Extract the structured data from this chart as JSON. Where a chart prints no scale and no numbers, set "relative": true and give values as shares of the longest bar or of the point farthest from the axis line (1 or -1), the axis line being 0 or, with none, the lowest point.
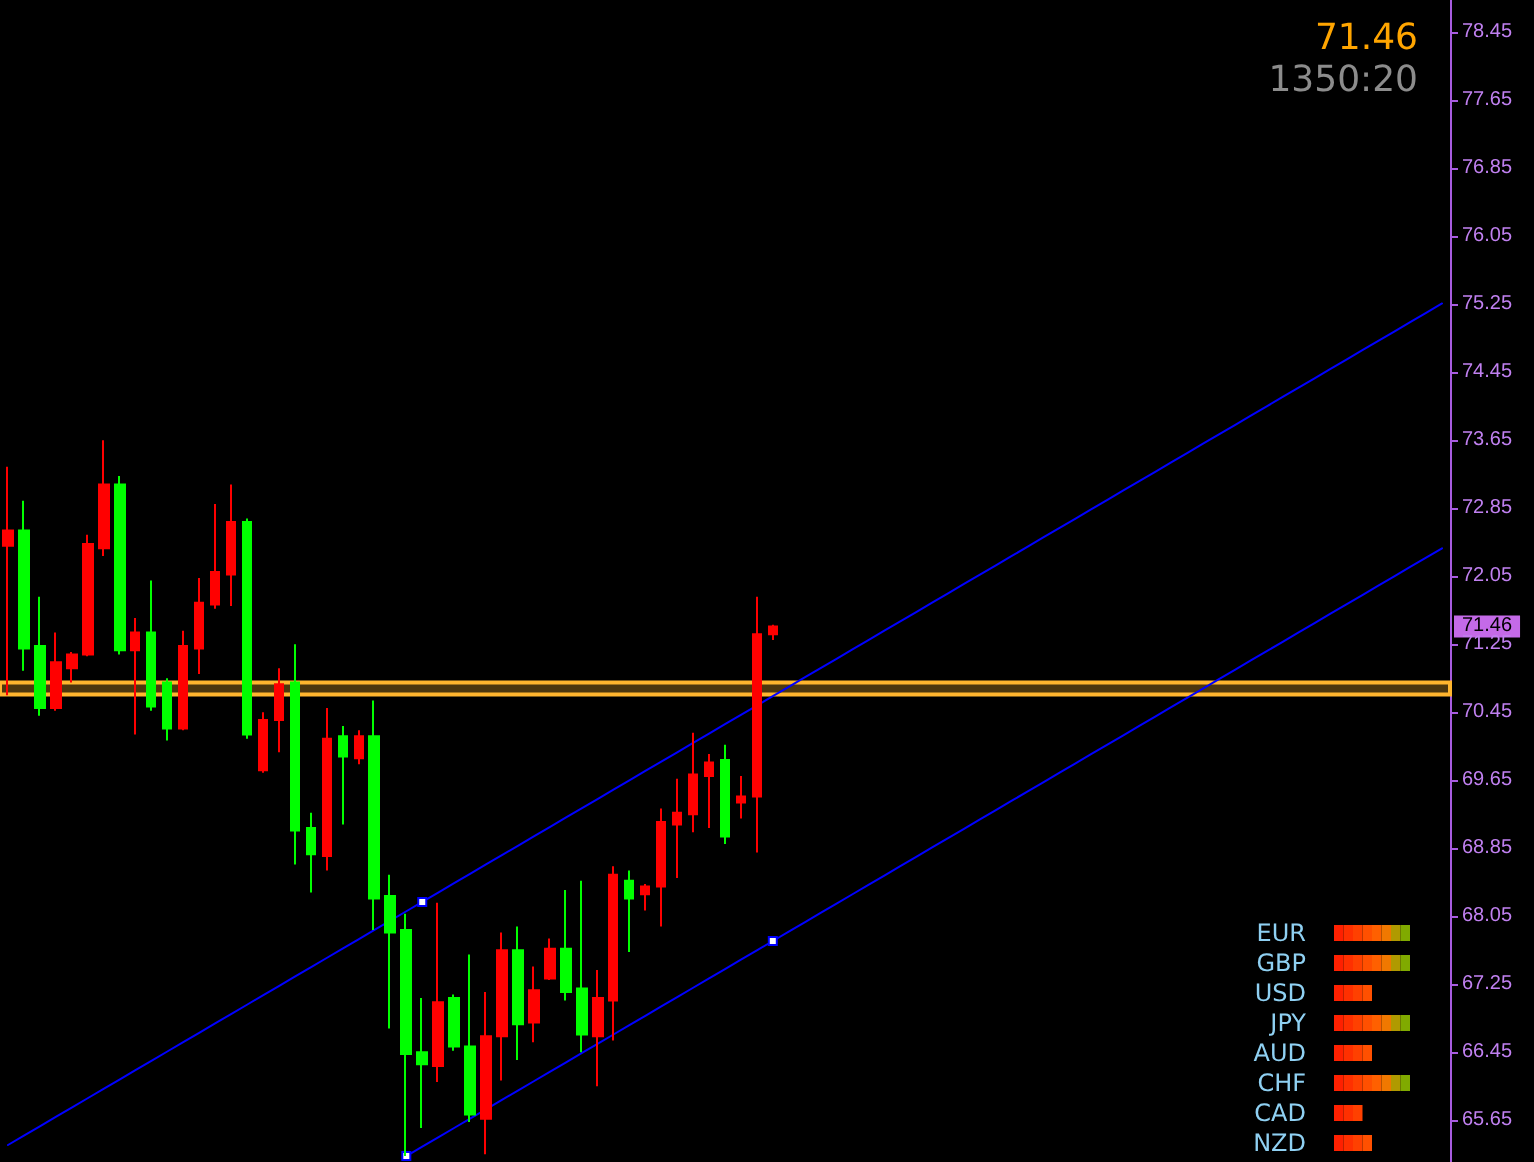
{
  "chart_data": [
    {
      "type": "candlestick",
      "annotations": [
        "71.46",
        "1350:20",
        {
          "text": "71.46",
          "y": 71.46
        }
      ],
      "categories": [
        null,
        null,
        null,
        null,
        null,
        null,
        null,
        null,
        null,
        null,
        null,
        null,
        null,
        null,
        null,
        null,
        null,
        null,
        null,
        null,
        null,
        null,
        null,
        null,
        null,
        null,
        null,
        null,
        null,
        null,
        null,
        null,
        null,
        null,
        null,
        null,
        null,
        null,
        null,
        null,
        null,
        null,
        null,
        null,
        null,
        null,
        null,
        null,
        null,
        null,
        null,
        null,
        null,
        null,
        null,
        null,
        null,
        null,
        null,
        null,
        null,
        null,
        null,
        null,
        null,
        null,
        null,
        null,
        null,
        null,
        null,
        null,
        null,
        null,
        null,
        null,
        null,
        null,
        null,
        null,
        null,
        null,
        null,
        null,
        null,
        null,
        null,
        null,
        null,
        null,
        null
      ],
      "ohlc": [
        [
          72.41,
          73.34,
          70.65,
          72.59
        ],
        [
          72.59,
          72.94,
          70.94,
          71.2
        ],
        [
          71.23,
          71.81,
          70.41,
          70.5
        ],
        [
          70.5,
          71.39,
          70.47,
          71.04
        ],
        [
          70.97,
          71.16,
          70.8,
          71.13
        ],
        [
          71.13,
          72.54,
          71.11,
          72.43
        ],
        [
          72.38,
          73.65,
          72.29,
          73.13
        ],
        [
          73.13,
          73.23,
          71.13,
          71.18
        ],
        [
          71.18,
          71.56,
          70.19,
          71.39
        ],
        [
          71.39,
          72.0,
          70.47,
          70.52
        ],
        [
          70.8,
          70.85,
          70.12,
          70.26
        ],
        [
          70.26,
          71.41,
          70.24,
          71.23
        ],
        [
          71.2,
          72.03,
          70.9,
          71.74
        ],
        [
          71.72,
          72.9,
          71.67,
          72.1
        ],
        [
          72.07,
          73.13,
          71.7,
          72.69
        ],
        [
          72.69,
          72.73,
          70.14,
          70.19
        ],
        [
          69.77,
          70.45,
          69.74,
          70.36
        ],
        [
          70.36,
          70.97,
          69.98,
          70.78
        ],
        [
          70.8,
          71.25,
          68.66,
          69.06
        ],
        [
          69.09,
          69.27,
          68.33,
          68.78
        ],
        [
          68.76,
          70.5,
          68.59,
          70.14
        ],
        [
          70.17,
          70.29,
          69.13,
          69.93
        ],
        [
          69.91,
          70.24,
          69.84,
          70.17
        ],
        [
          70.17,
          70.59,
          67.89,
          68.26
        ],
        [
          68.29,
          68.54,
          66.73,
          67.86
        ],
        [
          67.89,
          68.08,
          65.23,
          66.43
        ],
        [
          66.45,
          67.09,
          65.56,
          66.31
        ],
        [
          66.29,
          68.21,
          66.1,
          67.04
        ],
        [
          67.09,
          67.13,
          66.47,
          66.52
        ],
        [
          66.52,
          67.6,
          65.63,
          65.72
        ],
        [
          65.67,
          67.16,
          65.25,
          66.64
        ],
        [
          66.64,
          67.86,
          66.12,
          67.65
        ],
        [
          67.65,
          67.93,
          66.36,
          66.78
        ],
        [
          66.8,
          67.46,
          66.57,
          67.18
        ],
        [
          67.32,
          67.79,
          67.3,
          67.67
        ],
        [
          67.67,
          68.36,
          67.06,
          67.16
        ],
        [
          67.2,
          68.47,
          66.45,
          66.66
        ],
        [
          66.64,
          67.42,
          66.05,
          67.09
        ],
        [
          67.06,
          68.64,
          66.59,
          68.54
        ],
        [
          68.47,
          68.59,
          67.63,
          68.26
        ],
        [
          68.31,
          68.43,
          68.12,
          68.4
        ],
        [
          68.4,
          69.32,
          67.93,
          69.16
        ],
        [
          69.13,
          69.67,
          68.5,
          69.27
        ],
        [
          69.25,
          70.21,
          69.04,
          69.72
        ],
        [
          69.7,
          69.96,
          69.09,
          69.86
        ],
        [
          69.89,
          70.07,
          68.9,
          68.99
        ],
        [
          69.39,
          69.7,
          69.2,
          69.46
        ],
        [
          69.46,
          71.81,
          68.8,
          71.37
        ],
        [
          71.37,
          71.48,
          71.3,
          71.46
        ],
        null,
        null,
        null,
        null,
        null,
        null,
        null,
        null,
        null,
        null,
        null,
        null,
        null,
        null,
        null,
        null,
        null,
        null,
        null,
        null,
        null,
        null,
        null,
        null,
        null,
        null,
        null,
        null,
        null,
        null,
        null,
        null,
        null,
        null,
        null,
        null,
        null,
        null,
        null,
        null,
        null,
        null
      ],
      "colors": [
        "#ff0000",
        "#00ff00",
        "#00ff00",
        "#ff0000",
        "#ff0000",
        "#ff0000",
        "#ff0000",
        "#00ff00",
        "#ff0000",
        "#00ff00",
        "#00ff00",
        "#ff0000",
        "#ff0000",
        "#ff0000",
        "#ff0000",
        "#00ff00",
        "#ff0000",
        "#ff0000",
        "#00ff00",
        "#00ff00",
        "#ff0000",
        "#00ff00",
        "#ff0000",
        "#00ff00",
        "#00ff00",
        "#00ff00",
        "#00ff00",
        "#ff0000",
        "#00ff00",
        "#00ff00",
        "#ff0000",
        "#ff0000",
        "#00ff00",
        "#ff0000",
        "#ff0000",
        "#00ff00",
        "#00ff00",
        "#ff0000",
        "#ff0000",
        "#00ff00",
        "#ff0000",
        "#ff0000",
        "#ff0000",
        "#ff0000",
        "#ff0000",
        "#00ff00",
        "#ff0000",
        "#ff0000",
        "#ff0000",
        null,
        null,
        null,
        null,
        null,
        null,
        null,
        null,
        null,
        null,
        null,
        null,
        null,
        null,
        null,
        null,
        null,
        null,
        null,
        null,
        null,
        null,
        null,
        null,
        null,
        null,
        null,
        null,
        null,
        null,
        null,
        null,
        null,
        null,
        null,
        null,
        null,
        null,
        null,
        null,
        null,
        null
      ],
      "series": [
        {
          "type": "line",
          "color": "#0000ff",
          "values": [
            65.36,
            65.47,
            65.58,
            65.69,
            65.8,
            65.91,
            66.02,
            66.13,
            66.24,
            66.35,
            66.46,
            66.57,
            66.68,
            66.79,
            66.9,
            67.01,
            67.12,
            67.23,
            67.34,
            67.45,
            67.56,
            67.67,
            67.78,
            67.89,
            68.0,
            68.11,
            68.22,
            68.33,
            68.44,
            68.55,
            68.66,
            68.77,
            68.88,
            68.99,
            69.1,
            69.21,
            69.32,
            69.43,
            69.54,
            69.65,
            69.76,
            69.87,
            69.98,
            70.09,
            70.2,
            70.31,
            70.42,
            70.53,
            70.64,
            70.75,
            70.86,
            70.97,
            71.08,
            71.19,
            71.3,
            71.41,
            71.52,
            71.63,
            71.74,
            71.85,
            71.96,
            72.07,
            72.18,
            72.29,
            72.4,
            72.51,
            72.62,
            72.73,
            72.84,
            72.95,
            73.06,
            73.17,
            73.28,
            73.39,
            73.5,
            73.61,
            73.72,
            73.83,
            73.94,
            74.05,
            74.16,
            74.27,
            74.38,
            74.49,
            74.6,
            74.71,
            74.82,
            74.93,
            75.04,
            75.15,
            75.26
          ]
        },
        {
          "type": "line",
          "color": "#0000ff",
          "values": [
            null,
            null,
            null,
            null,
            null,
            null,
            null,
            null,
            null,
            null,
            null,
            null,
            null,
            null,
            null,
            null,
            null,
            null,
            null,
            null,
            null,
            null,
            null,
            null,
            null,
            65.23,
            65.34,
            65.45,
            65.56,
            65.67,
            65.78,
            65.89,
            66.0,
            66.11,
            66.22,
            66.33,
            66.44,
            66.55,
            66.66,
            66.77,
            66.88,
            66.99,
            67.1,
            67.21,
            67.32,
            67.43,
            67.54,
            67.65,
            67.76,
            67.87,
            67.98,
            68.09,
            68.2,
            68.31,
            68.42,
            68.53,
            68.64,
            68.75,
            68.86,
            68.97,
            69.08,
            69.19,
            69.3,
            69.41,
            69.52,
            69.63,
            69.74,
            69.85,
            69.96,
            70.07,
            70.18,
            70.29,
            70.4,
            70.51,
            70.62,
            70.73,
            70.84,
            70.95,
            71.06,
            71.17,
            71.28,
            71.39,
            71.5,
            71.61,
            71.72,
            71.83,
            71.94,
            72.05,
            72.16,
            72.27,
            72.38
          ]
        },
        {
          "type": "scatter",
          "color": "#ffffff",
          "marker": "square",
          "values": [
            null,
            null,
            null,
            null,
            null,
            null,
            null,
            null,
            null,
            null,
            null,
            null,
            null,
            null,
            null,
            null,
            null,
            null,
            null,
            null,
            null,
            null,
            null,
            null,
            null,
            65.23,
            68.22,
            null,
            null,
            null,
            null,
            null,
            null,
            null,
            null,
            null,
            null,
            null,
            null,
            null,
            null,
            null,
            null,
            null,
            null,
            null,
            null,
            null,
            67.76,
            null,
            null,
            null,
            null,
            null,
            null,
            null,
            null,
            null,
            null,
            null,
            null,
            null,
            null,
            null,
            null,
            null,
            null,
            null,
            null,
            null,
            null,
            null,
            null,
            null,
            null,
            null,
            null,
            null,
            null,
            null,
            null,
            null,
            null,
            null,
            null,
            null,
            null,
            null,
            null,
            null,
            null
          ]
        }
      ],
      "bands": [
        {
          "axis": "y",
          "from": 70.66,
          "to": 70.8,
          "color": "#ffb52e"
        }
      ],
      "ylim": [
        65.16,
        78.83
      ],
      "yticks": [
        65.65,
        66.45,
        67.25,
        68.05,
        68.85,
        69.65,
        70.45,
        71.25,
        72.05,
        72.85,
        73.65,
        74.45,
        75.25,
        76.05,
        76.85,
        77.65,
        78.45
      ],
      "tick_labels": "y"
    },
    {
      "type": "bar",
      "orientation": "horizontal",
      "stacked": true,
      "relative": true,
      "categories": [
        "EUR",
        "GBP",
        "USD",
        "JPY",
        "AUD",
        "CHF",
        "CAD",
        "NZD"
      ],
      "series": [
        {
          "color": "#ff2000",
          "values": [
            0.125,
            0.125,
            0.125,
            0.125,
            0.125,
            0.125,
            0.125,
            0.125
          ]
        },
        {
          "color": "#ff3000",
          "values": [
            0.125,
            0.125,
            0.125,
            0.125,
            0.125,
            0.125,
            0.125,
            0.125
          ]
        },
        {
          "color": "#ff4000",
          "values": [
            0.125,
            0.125,
            0.125,
            0.125,
            0.125,
            0.125,
            0.125,
            0.125
          ]
        },
        {
          "color": "#ff5000",
          "values": [
            0.125,
            0.125,
            0.125,
            0.125,
            0.125,
            0.125,
            null,
            0.125
          ]
        },
        {
          "color": "#ff6000",
          "values": [
            0.125,
            0.125,
            null,
            0.125,
            null,
            0.125,
            null,
            null
          ]
        },
        {
          "color": "#f07800",
          "values": [
            0.125,
            0.125,
            null,
            0.125,
            null,
            0.125,
            null,
            null
          ]
        },
        {
          "color": "#b09a00",
          "values": [
            0.125,
            0.125,
            null,
            0.125,
            null,
            0.125,
            null,
            null
          ]
        },
        {
          "color": "#80aa00",
          "values": [
            0.125,
            0.125,
            null,
            0.125,
            null,
            0.125,
            null,
            null
          ]
        }
      ]
    }
  ]
}
